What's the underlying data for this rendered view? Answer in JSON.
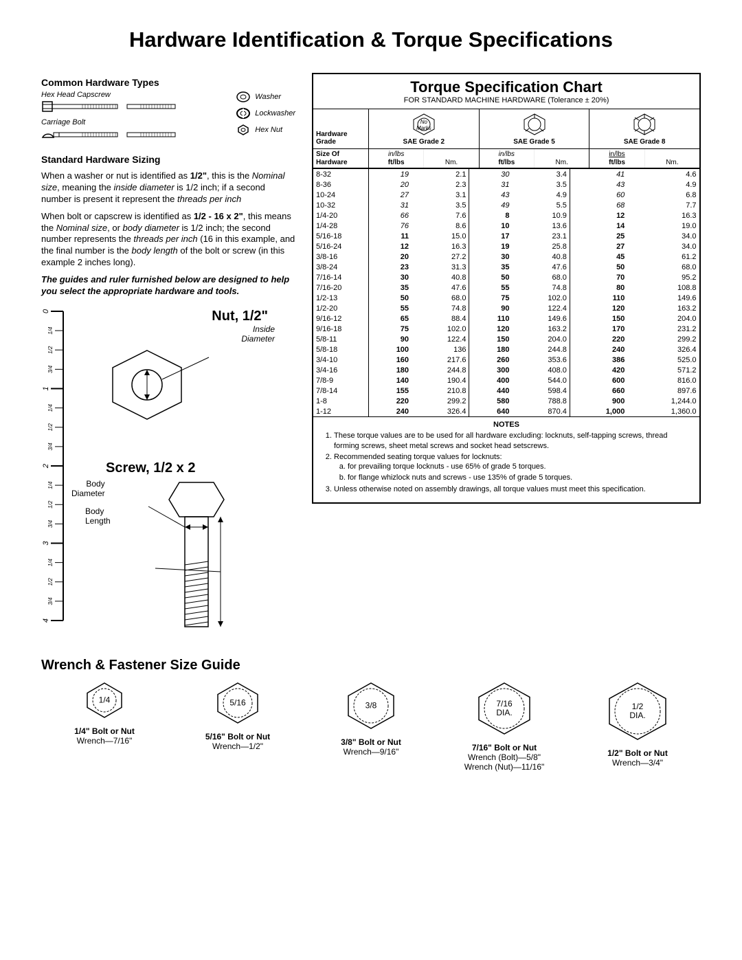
{
  "title": "Hardware Identification  &  Torque Specifications",
  "left": {
    "common_hw_title": "Common Hardware Types",
    "hex_capscrew": "Hex Head Capscrew",
    "carriage_bolt": "Carriage Bolt",
    "washer": "Washer",
    "lockwasher": "Lockwasher",
    "hex_nut": "Hex Nut",
    "sizing_title": "Standard Hardware Sizing",
    "para1_a": "When a washer or nut is identified as ",
    "para1_b": "1/2\"",
    "para1_c": ", this is the ",
    "para1_d": "Nominal size",
    "para1_e": ", meaning the ",
    "para1_f": "inside diameter",
    "para1_g": " is 1/2 inch; if a second number is present it represent the ",
    "para1_h": "threads per inch",
    "para2_a": "When bolt or capscrew is identified as ",
    "para2_b": "1/2 - 16 x 2\"",
    "para2_c": ", this means the ",
    "para2_d": "Nominal size",
    "para2_e": ", or ",
    "para2_f": "body diameter",
    "para2_g": " is 1/2 inch; the second number represents the ",
    "para2_h": "threads per inch",
    "para2_i": " (16 in this example, and the final number is the ",
    "para2_j": "body length",
    "para2_k": " of the bolt or screw (in this example 2 inches long).",
    "para3": "The guides and ruler furnished below are designed to help you select the appropriate hardware and tools.",
    "nut_label": "Nut, 1/2\"",
    "inside_diam": "Inside\nDiameter",
    "screw_label": "Screw, 1/2 x 2",
    "body_diam": "Body\nDiameter",
    "body_len": "Body\nLength",
    "ruler_major": [
      "0",
      "1",
      "2",
      "3",
      "4"
    ],
    "ruler_minor": [
      "1/4",
      "1/2",
      "3/4"
    ]
  },
  "torque": {
    "title": "Torque Specification Chart",
    "subtitle": "FOR STANDARD MACHINE HARDWARE (Tolerance ± 20%)",
    "hw_grade_label": "Hardware\nGrade",
    "no_marks": "No\nMarks",
    "grade_names": [
      "SAE Grade 2",
      "SAE Grade 5",
      "SAE Grade 8"
    ],
    "size_label": "Size Of\nHardware",
    "inlbs": "in/lbs",
    "ftlbs": "ft/lbs",
    "nm": "Nm.",
    "rows": [
      {
        "s": "8-32",
        "a": "19",
        "an": "2.1",
        "b": "30",
        "bn": "3.4",
        "c": "41",
        "cn": "4.6",
        "ai": true,
        "bi": true,
        "ci": true
      },
      {
        "s": "8-36",
        "a": "20",
        "an": "2.3",
        "b": "31",
        "bn": "3.5",
        "c": "43",
        "cn": "4.9",
        "ai": true,
        "bi": true,
        "ci": true
      },
      {
        "s": "10-24",
        "a": "27",
        "an": "3.1",
        "b": "43",
        "bn": "4.9",
        "c": "60",
        "cn": "6.8",
        "ai": true,
        "bi": true,
        "ci": true
      },
      {
        "s": "10-32",
        "a": "31",
        "an": "3.5",
        "b": "49",
        "bn": "5.5",
        "c": "68",
        "cn": "7.7",
        "ai": true,
        "bi": true,
        "ci": true
      },
      {
        "s": "1/4-20",
        "a": "66",
        "an": "7.6",
        "b": "8",
        "bn": "10.9",
        "c": "12",
        "cn": "16.3",
        "ai": true,
        "bb": true,
        "cb": true
      },
      {
        "s": "1/4-28",
        "a": "76",
        "an": "8.6",
        "b": "10",
        "bn": "13.6",
        "c": "14",
        "cn": "19.0",
        "ai": true,
        "bb": true,
        "cb": true
      },
      {
        "s": "5/16-18",
        "a": "11",
        "an": "15.0",
        "b": "17",
        "bn": "23.1",
        "c": "25",
        "cn": "34.0",
        "ab": true,
        "bb": true,
        "cb": true
      },
      {
        "s": "5/16-24",
        "a": "12",
        "an": "16.3",
        "b": "19",
        "bn": "25.8",
        "c": "27",
        "cn": "34.0",
        "ab": true,
        "bb": true,
        "cb": true
      },
      {
        "s": "3/8-16",
        "a": "20",
        "an": "27.2",
        "b": "30",
        "bn": "40.8",
        "c": "45",
        "cn": "61.2",
        "ab": true,
        "bb": true,
        "cb": true
      },
      {
        "s": "3/8-24",
        "a": "23",
        "an": "31.3",
        "b": "35",
        "bn": "47.6",
        "c": "50",
        "cn": "68.0",
        "ab": true,
        "bb": true,
        "cb": true
      },
      {
        "s": "7/16-14",
        "a": "30",
        "an": "40.8",
        "b": "50",
        "bn": "68.0",
        "c": "70",
        "cn": "95.2",
        "ab": true,
        "bb": true,
        "cb": true
      },
      {
        "s": "7/16-20",
        "a": "35",
        "an": "47.6",
        "b": "55",
        "bn": "74.8",
        "c": "80",
        "cn": "108.8",
        "ab": true,
        "bb": true,
        "cb": true
      },
      {
        "s": "1/2-13",
        "a": "50",
        "an": "68.0",
        "b": "75",
        "bn": "102.0",
        "c": "110",
        "cn": "149.6",
        "ab": true,
        "bb": true,
        "cb": true
      },
      {
        "s": "1/2-20",
        "a": "55",
        "an": "74.8",
        "b": "90",
        "bn": "122.4",
        "c": "120",
        "cn": "163.2",
        "ab": true,
        "bb": true,
        "cb": true
      },
      {
        "s": "9/16-12",
        "a": "65",
        "an": "88.4",
        "b": "110",
        "bn": "149.6",
        "c": "150",
        "cn": "204.0",
        "ab": true,
        "bb": true,
        "cb": true
      },
      {
        "s": "9/16-18",
        "a": "75",
        "an": "102.0",
        "b": "120",
        "bn": "163.2",
        "c": "170",
        "cn": "231.2",
        "ab": true,
        "bb": true,
        "cb": true
      },
      {
        "s": "5/8-11",
        "a": "90",
        "an": "122.4",
        "b": "150",
        "bn": "204.0",
        "c": "220",
        "cn": "299.2",
        "ab": true,
        "bb": true,
        "cb": true
      },
      {
        "s": "5/8-18",
        "a": "100",
        "an": "136",
        "b": "180",
        "bn": "244.8",
        "c": "240",
        "cn": "326.4",
        "ab": true,
        "bb": true,
        "cb": true
      },
      {
        "s": "3/4-10",
        "a": "160",
        "an": "217.6",
        "b": "260",
        "bn": "353.6",
        "c": "386",
        "cn": "525.0",
        "ab": true,
        "bb": true,
        "cb": true
      },
      {
        "s": "3/4-16",
        "a": "180",
        "an": "244.8",
        "b": "300",
        "bn": "408.0",
        "c": "420",
        "cn": "571.2",
        "ab": true,
        "bb": true,
        "cb": true
      },
      {
        "s": "7/8-9",
        "a": "140",
        "an": "190.4",
        "b": "400",
        "bn": "544.0",
        "c": "600",
        "cn": "816.0",
        "ab": true,
        "bb": true,
        "cb": true
      },
      {
        "s": "7/8-14",
        "a": "155",
        "an": "210.8",
        "b": "440",
        "bn": "598.4",
        "c": "660",
        "cn": "897.6",
        "ab": true,
        "bb": true,
        "cb": true
      },
      {
        "s": "1-8",
        "a": "220",
        "an": "299.2",
        "b": "580",
        "bn": "788.8",
        "c": "900",
        "cn": "1,244.0",
        "ab": true,
        "bb": true,
        "cb": true
      },
      {
        "s": "1-12",
        "a": "240",
        "an": "326.4",
        "b": "640",
        "bn": "870.4",
        "c": "1,000",
        "cn": "1,360.0",
        "ab": true,
        "bb": true,
        "cb": true
      }
    ],
    "notes_title": "NOTES",
    "note1": "These torque values are to be used for all hardware excluding: locknuts, self-tapping screws, thread forming screws, sheet metal screws and socket head setscrews.",
    "note2": "Recommended seating torque values for locknuts:",
    "note2a": "for prevailing torque locknuts - use 65% of grade 5 torques.",
    "note2b": "for flange whizlock nuts and screws - use 135% of grade 5 torques.",
    "note3": "Unless otherwise noted on assembly drawings, all torque values must meet this specification."
  },
  "wrench": {
    "title": "Wrench & Fastener Size Guide",
    "items": [
      {
        "hex": "1/4",
        "bolt": "1/4\" Bolt or Nut",
        "w1": "Wrench—7/16\"",
        "w2": "",
        "size": 42
      },
      {
        "hex": "5/16",
        "bolt": "5/16\" Bolt or Nut",
        "w1": "Wrench—1/2\"",
        "w2": "",
        "size": 50
      },
      {
        "hex": "3/8",
        "bolt": "3/8\" Bolt or Nut",
        "w1": "Wrench—9/16\"",
        "w2": "",
        "size": 58
      },
      {
        "hex": "7/16\nDIA.",
        "bolt": "7/16\" Bolt or Nut",
        "w1": "Wrench (Bolt)—5/8\"",
        "w2": "Wrench (Nut)—11/16\"",
        "size": 66
      },
      {
        "hex": "1/2\nDIA.",
        "bolt": "1/2\" Bolt or Nut",
        "w1": "Wrench—3/4\"",
        "w2": "",
        "size": 74
      }
    ]
  },
  "colors": {
    "line": "#000000"
  }
}
